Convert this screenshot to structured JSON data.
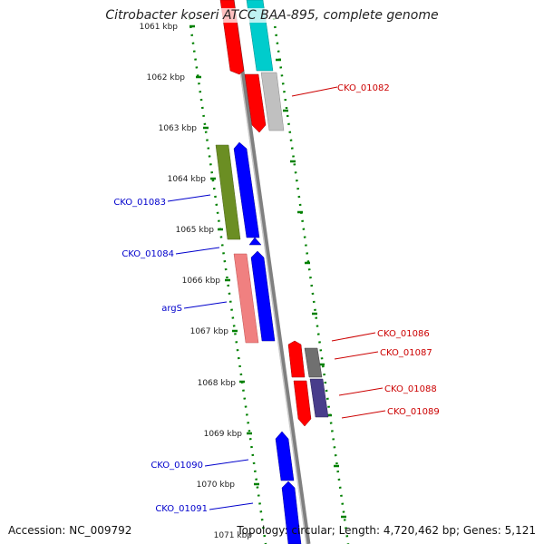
{
  "title": "Citrobacter koseri ATCC BAA-895, complete genome",
  "footer": {
    "accession": "Accession: NC_009792",
    "summary": "Topology: circular; Length: 4,720,462 bp; Genes: 5,121"
  },
  "ruler": {
    "tick_labels": [
      "1061 kbp",
      "1062 kbp",
      "1063 kbp",
      "1064 kbp",
      "1065 kbp",
      "1066 kbp",
      "1067 kbp",
      "1068 kbp",
      "1069 kbp",
      "1070 kbp",
      "1071 kbp"
    ]
  },
  "gene_labels": {
    "CKO_01082": "CKO_01082",
    "CKO_01083": "CKO_01083",
    "CKO_01084": "CKO_01084",
    "argS": "argS",
    "CKO_01086": "CKO_01086",
    "CKO_01087": "CKO_01087",
    "CKO_01088": "CKO_01088",
    "CKO_01089": "CKO_01089",
    "CKO_01090": "CKO_01090",
    "CKO_01091": "CKO_01091"
  },
  "colors": {
    "red": "#ff0000",
    "cyan": "#00cccc",
    "gray": "#c0c0c0",
    "olive": "#6b8e23",
    "blue": "#0000ff",
    "salmon": "#f08080",
    "darkgray": "#707070",
    "slate": "#483d8b",
    "label_blue": "#0000cc",
    "label_red": "#cc0000",
    "tick_green": "#008000"
  }
}
